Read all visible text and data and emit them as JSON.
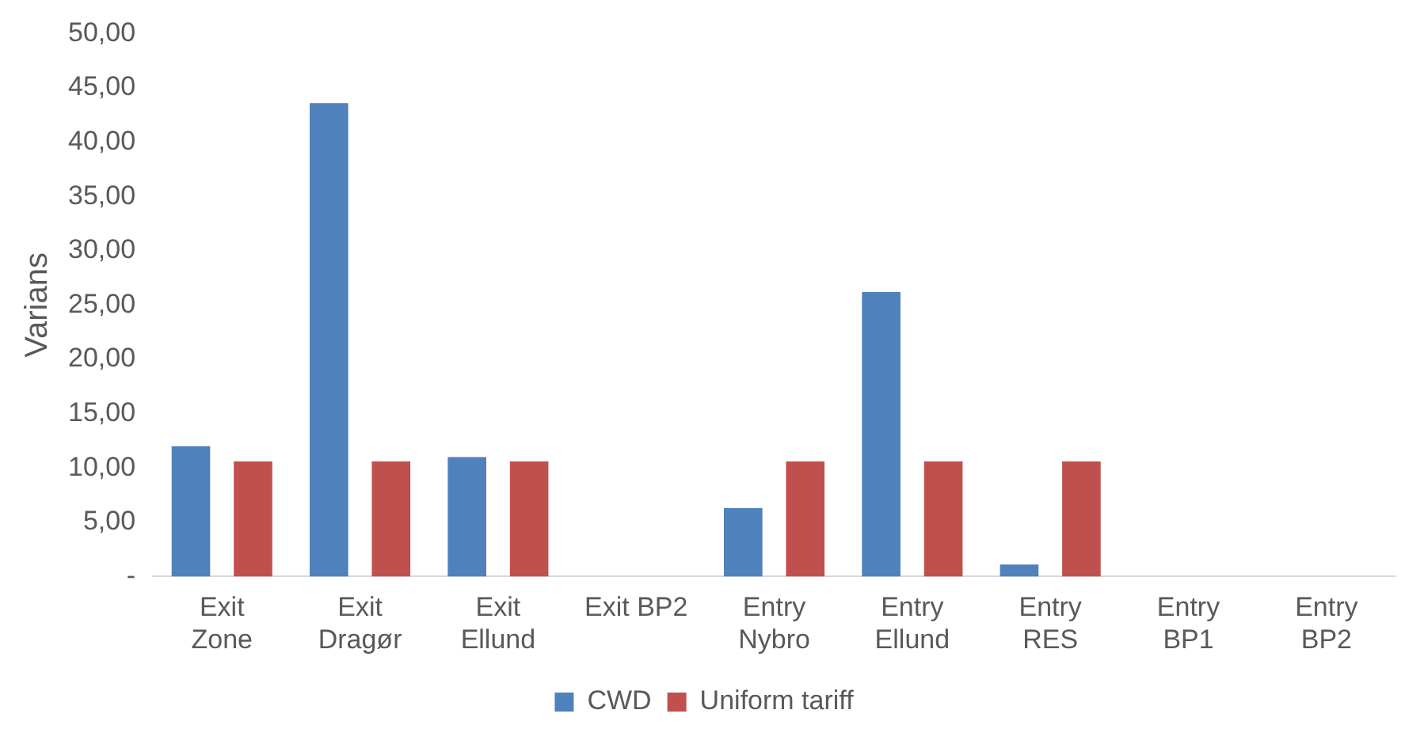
{
  "chart_data": {
    "type": "bar",
    "ylabel": "Varians",
    "categories": [
      "Exit\nZone",
      "Exit\nDragør",
      "Exit\nEllund",
      "Exit BP2",
      "Entry\nNybro",
      "Entry\nEllund",
      "Entry\nRES",
      "Entry\nBP1",
      "Entry\nBP2"
    ],
    "series": [
      {
        "name": "CWD",
        "color": "#4f81bd",
        "values": [
          12.0,
          43.6,
          11.0,
          0,
          6.3,
          26.2,
          1.1,
          0,
          0
        ]
      },
      {
        "name": "Uniform tariff",
        "color": "#c0504d",
        "values": [
          10.6,
          10.6,
          10.6,
          0,
          10.6,
          10.6,
          10.6,
          0,
          0
        ]
      }
    ],
    "ylim": [
      0,
      50
    ],
    "yticks": [
      {
        "value": 0,
        "label": "-"
      },
      {
        "value": 5,
        "label": "5,00"
      },
      {
        "value": 10,
        "label": "10,00"
      },
      {
        "value": 15,
        "label": "15,00"
      },
      {
        "value": 20,
        "label": "20,00"
      },
      {
        "value": 25,
        "label": "25,00"
      },
      {
        "value": 30,
        "label": "30,00"
      },
      {
        "value": 35,
        "label": "35,00"
      },
      {
        "value": 40,
        "label": "40,00"
      },
      {
        "value": 45,
        "label": "45,00"
      },
      {
        "value": 50,
        "label": "50,00"
      }
    ],
    "grid": false,
    "legend": "bottom"
  }
}
